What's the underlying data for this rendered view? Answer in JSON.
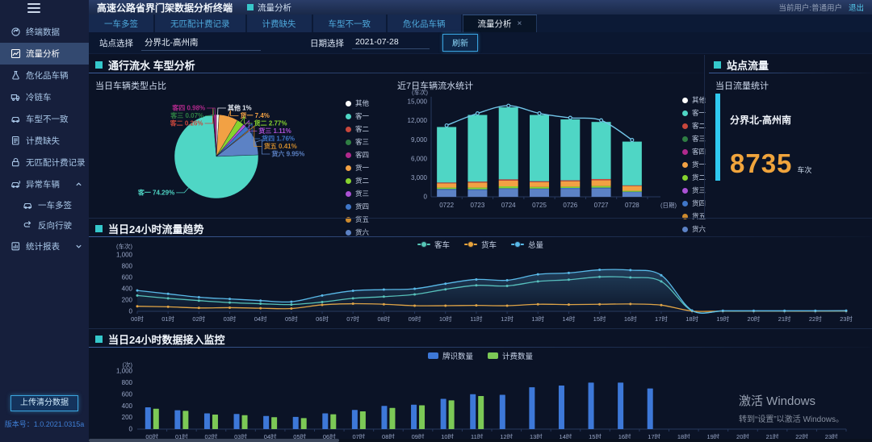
{
  "app": {
    "title": "高速公路省界门架数据分析终端",
    "header_badge": "流量分析",
    "user_label": "当前用户:普通用户",
    "logout": "退出",
    "upload_button": "上传清分数据",
    "version": "版本号：1.0.2021.0315a",
    "watermark_line1": "激活 Windows",
    "watermark_line2": "转到“设置”以激活 Windows。"
  },
  "sidebar": {
    "items": [
      {
        "id": "terminal-data",
        "icon": "terminal-data",
        "label": "终端数据"
      },
      {
        "id": "flow-analysis",
        "icon": "flow-analysis",
        "label": "流量分析",
        "active": true
      },
      {
        "id": "hazmat-vehicles",
        "icon": "hazmat",
        "label": "危化品车辆"
      },
      {
        "id": "cold-chain",
        "icon": "cold-chain",
        "label": "冷链车"
      },
      {
        "id": "vehicle-type-mismatch",
        "icon": "vehicle-mismatch",
        "label": "车型不一致"
      },
      {
        "id": "billing-missing",
        "icon": "billing-missing",
        "label": "计费缺失"
      },
      {
        "id": "unmatched-billing",
        "icon": "unmatched-billing",
        "label": "无匹配计费记录"
      },
      {
        "id": "abnormal-vehicles",
        "icon": "abnormal-vehicle",
        "label": "异常车辆",
        "arrow": "up"
      },
      {
        "id": "multi-tag",
        "icon": "multi-tag",
        "label": "一车多签",
        "indent": true
      },
      {
        "id": "reverse-driving",
        "icon": "reverse-driving",
        "label": "反向行驶",
        "indent": true
      },
      {
        "id": "statistics-report",
        "icon": "report",
        "label": "统计报表",
        "arrow": "down"
      }
    ]
  },
  "tabs": [
    {
      "id": "multi-tag",
      "label": "一车多签"
    },
    {
      "id": "unmatched-billing",
      "label": "无匹配计费记录"
    },
    {
      "id": "billing-missing",
      "label": "计费缺失"
    },
    {
      "id": "vehicle-mismatch",
      "label": "车型不一致"
    },
    {
      "id": "hazmat",
      "label": "危化品车辆"
    },
    {
      "id": "flow-analysis",
      "label": "流量分析",
      "active": true,
      "closable": true
    }
  ],
  "filters": {
    "station_label": "站点选择",
    "station_value": "分界北-高州南",
    "date_label": "日期选择",
    "date_value": "2021-07-28",
    "refresh": "刷新"
  },
  "sections": {
    "traffic": {
      "title": "通行流水 车型分析"
    },
    "station": {
      "title": "站点流量",
      "subtitle": "当日流量统计",
      "station": "分界北-高州南",
      "count": "8735",
      "unit": "车次"
    },
    "trend": {
      "title": "当日24小时流量趋势"
    },
    "monitor": {
      "title": "当日24小时数据接入监控"
    }
  },
  "chart_data": [
    {
      "id": "vehicle-type-pie",
      "type": "pie",
      "title": "当日车辆类型占比",
      "legend_position": "right",
      "items": [
        {
          "name": "其他",
          "value": 1,
          "color": "#ffffff"
        },
        {
          "name": "客一",
          "value": 74.29,
          "color": "#4fd6c5"
        },
        {
          "name": "客二",
          "value": 0.26,
          "color": "#c8473c"
        },
        {
          "name": "客三",
          "value": 0.07,
          "color": "#2f7e43"
        },
        {
          "name": "客四",
          "value": 0.98,
          "color": "#b0298c"
        },
        {
          "name": "货一",
          "value": 7.4,
          "color": "#f2a144"
        },
        {
          "name": "货二",
          "value": 2.77,
          "color": "#86d32f"
        },
        {
          "name": "货三",
          "value": 1.11,
          "color": "#ab52d5"
        },
        {
          "name": "货四",
          "value": 1.76,
          "color": "#3f76c8"
        },
        {
          "name": "货五",
          "value": 0.41,
          "color": "#cd8a2d"
        },
        {
          "name": "货六",
          "value": 9.95,
          "color": "#5c82c5"
        }
      ],
      "draw_order": [
        0,
        5,
        6,
        7,
        8,
        9,
        10,
        1,
        2,
        3,
        4
      ]
    },
    {
      "id": "weekly-flow",
      "type": "stacked-bar-line",
      "title": "近7日车辆流水统计",
      "y_unit": "(车次)",
      "x_unit": "(日期)",
      "categories": [
        "0722",
        "0723",
        "0724",
        "0725",
        "0726",
        "0727",
        "0728"
      ],
      "ylim": [
        0,
        15000
      ],
      "yticks": [
        0,
        3000,
        6000,
        9000,
        12000,
        15000
      ],
      "ytick_labels": [
        "0",
        "3,000",
        "6,000",
        "9,000",
        "12,000",
        "15,000"
      ],
      "series": [
        {
          "name": "货六",
          "color": "#5c82c5",
          "values": [
            1100,
            1050,
            1200,
            1150,
            1250,
            1300,
            700
          ]
        },
        {
          "name": "货四",
          "color": "#3f76c8",
          "values": [
            150,
            150,
            150,
            150,
            150,
            150,
            100
          ]
        },
        {
          "name": "货二",
          "color": "#86d32f",
          "values": [
            200,
            250,
            300,
            250,
            200,
            250,
            150
          ]
        },
        {
          "name": "货一",
          "color": "#f2a144",
          "values": [
            650,
            800,
            900,
            750,
            850,
            900,
            750
          ]
        },
        {
          "name": "客二",
          "color": "#c8473c",
          "values": [
            150,
            150,
            200,
            150,
            150,
            200,
            100
          ]
        },
        {
          "name": "客一",
          "color": "#4fd6c5",
          "values": [
            8750,
            10500,
            11350,
            10450,
            9600,
            9000,
            6900
          ]
        }
      ],
      "line": {
        "name": "总量",
        "color": "#72c6e9",
        "values": [
          11000,
          12900,
          14100,
          12900,
          12200,
          11800,
          8700
        ]
      },
      "legend": [
        {
          "name": "其他",
          "color": "#ffffff"
        },
        {
          "name": "客一",
          "color": "#4fd6c5"
        },
        {
          "name": "客二",
          "color": "#c8473c"
        },
        {
          "name": "客三",
          "color": "#2f7e43"
        },
        {
          "name": "客四",
          "color": "#b0298c"
        },
        {
          "name": "货一",
          "color": "#f2a144"
        },
        {
          "name": "货二",
          "color": "#86d32f"
        },
        {
          "name": "货三",
          "color": "#ab52d5"
        },
        {
          "name": "货四",
          "color": "#3f76c8"
        },
        {
          "name": "货五",
          "color": "#cd8a2d"
        },
        {
          "name": "货六",
          "color": "#5c82c5"
        }
      ]
    },
    {
      "id": "hourly-trend",
      "type": "line",
      "title": "当日24小时流量趋势",
      "y_unit": "(车次)",
      "categories": [
        "00时",
        "01时",
        "02时",
        "03时",
        "04时",
        "05时",
        "06时",
        "07时",
        "08时",
        "09时",
        "10时",
        "11时",
        "12时",
        "13时",
        "14时",
        "15时",
        "16时",
        "17时",
        "18时",
        "19时",
        "20时",
        "21时",
        "22时",
        "23时"
      ],
      "ylim": [
        0,
        1000
      ],
      "yticks": [
        0,
        200,
        400,
        600,
        800,
        1000
      ],
      "ytick_labels": [
        "0",
        "200",
        "400",
        "600",
        "800",
        "1,000"
      ],
      "series": [
        {
          "name": "客车",
          "color": "#57c7b7",
          "values": [
            280,
            230,
            190,
            155,
            135,
            120,
            165,
            230,
            260,
            300,
            390,
            460,
            450,
            530,
            560,
            610,
            600,
            530,
            10,
            5,
            5,
            5,
            5,
            5
          ]
        },
        {
          "name": "货车",
          "color": "#e9a43c",
          "values": [
            90,
            80,
            60,
            65,
            55,
            50,
            115,
            135,
            125,
            100,
            100,
            105,
            100,
            125,
            120,
            125,
            130,
            110,
            5,
            5,
            5,
            5,
            5,
            8
          ]
        },
        {
          "name": "总量",
          "color": "#59b9e8",
          "values": [
            370,
            310,
            250,
            220,
            190,
            170,
            280,
            365,
            385,
            400,
            490,
            565,
            550,
            655,
            680,
            735,
            730,
            640,
            15,
            10,
            10,
            10,
            10,
            13
          ],
          "area": true
        }
      ]
    },
    {
      "id": "hourly-monitor",
      "type": "grouped-bar",
      "title": "当日24小时数据接入监控",
      "y_unit": "(次)",
      "categories": [
        "00时",
        "01时",
        "02时",
        "03时",
        "04时",
        "05时",
        "06时",
        "07时",
        "08时",
        "09时",
        "10时",
        "11时",
        "12时",
        "13时",
        "14时",
        "15时",
        "16时",
        "17时",
        "18时",
        "19时",
        "20时",
        "21时",
        "22时",
        "23时"
      ],
      "ylim": [
        0,
        1000
      ],
      "yticks": [
        0,
        200,
        400,
        600,
        800,
        1000
      ],
      "ytick_labels": [
        "0",
        "200",
        "400",
        "600",
        "800",
        "1,000"
      ],
      "series": [
        {
          "name": "牌识数量",
          "color": "#3d78d8",
          "values": [
            375,
            325,
            270,
            260,
            225,
            210,
            270,
            330,
            400,
            420,
            520,
            600,
            590,
            720,
            750,
            800,
            800,
            700,
            0,
            0,
            0,
            0,
            0,
            0
          ]
        },
        {
          "name": "计费数量",
          "color": "#7cc956",
          "values": [
            350,
            315,
            250,
            240,
            205,
            190,
            255,
            305,
            365,
            410,
            495,
            570,
            0,
            0,
            0,
            0,
            0,
            0,
            0,
            0,
            0,
            0,
            0,
            0
          ]
        }
      ]
    }
  ]
}
